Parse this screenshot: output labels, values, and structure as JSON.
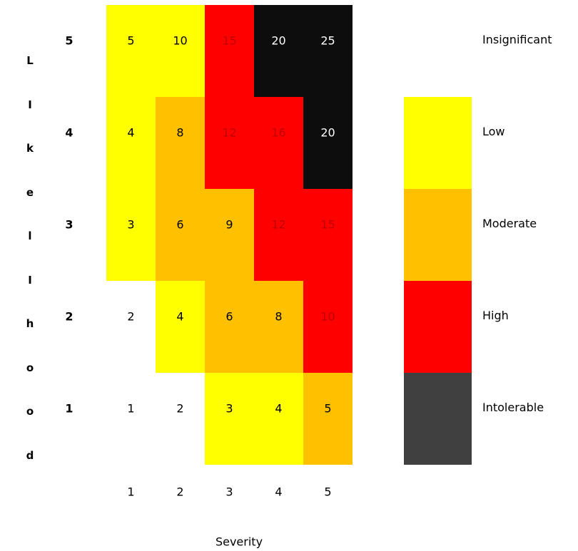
{
  "chart_data": {
    "type": "heatmap",
    "xlabel": "Severity",
    "ylabel": "Likelihood",
    "ylabel_letters": [
      "L",
      "I",
      "k",
      "e",
      "l",
      "I",
      "h",
      "o",
      "o",
      "d"
    ],
    "x": [
      "1",
      "2",
      "3",
      "4",
      "5"
    ],
    "y": [
      "5",
      "4",
      "3",
      "2",
      "1"
    ],
    "values": [
      [
        5,
        10,
        15,
        20,
        25
      ],
      [
        4,
        8,
        12,
        16,
        20
      ],
      [
        3,
        6,
        9,
        12,
        15
      ],
      [
        2,
        4,
        6,
        8,
        10
      ],
      [
        1,
        2,
        3,
        4,
        5
      ]
    ],
    "levels": [
      [
        "Low",
        "Low",
        "High",
        "Insignificant",
        "Insignificant"
      ],
      [
        "Low",
        "Moderate",
        "High",
        "High",
        "Insignificant"
      ],
      [
        "Low",
        "Moderate",
        "Moderate",
        "High",
        "High"
      ],
      [
        "None",
        "Low",
        "Moderate",
        "Moderate",
        "High"
      ],
      [
        "None",
        "None",
        "Low",
        "Low",
        "Moderate"
      ]
    ],
    "level_colors": {
      "None": "#ffffff",
      "Low": "#ffff00",
      "Moderate": "#ffc000",
      "High": "#ff0000",
      "Insignificant": "#0d0d0d"
    },
    "text_colors": {
      "None": "#000000",
      "Low": "#000000",
      "Moderate": "#000000",
      "High": "#c00000",
      "Insignificant": "#ffffff"
    },
    "legend": [
      {
        "label": "Insignificant",
        "color": null
      },
      {
        "label": "Low",
        "color": "#ffff00"
      },
      {
        "label": "Moderate",
        "color": "#ffc000"
      },
      {
        "label": "High",
        "color": "#ff0000"
      },
      {
        "label": "Intolerable",
        "color": "#404040"
      }
    ]
  }
}
